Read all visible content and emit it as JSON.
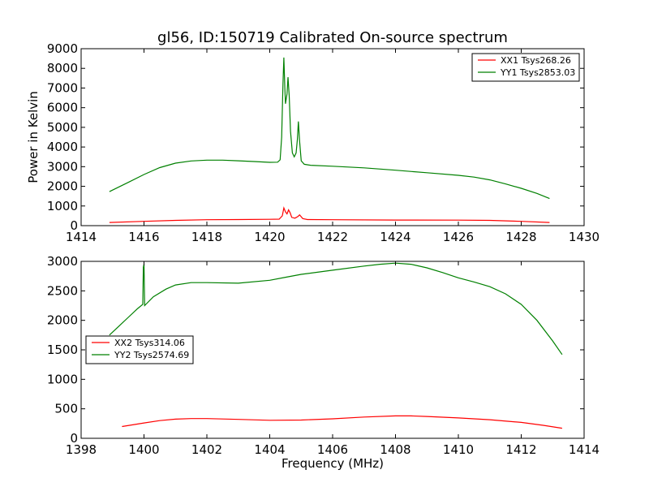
{
  "chart_data": [
    {
      "type": "line",
      "title": "gl56, ID:150719 Calibrated On-source spectrum",
      "xlabel": "",
      "ylabel": "Power in Kelvin",
      "xlim": [
        1414,
        1430
      ],
      "ylim": [
        0,
        9000
      ],
      "x_ticks": [
        "1414",
        "1416",
        "1418",
        "1420",
        "1422",
        "1424",
        "1426",
        "1428",
        "1430"
      ],
      "y_ticks": [
        "0",
        "1000",
        "2000",
        "3000",
        "4000",
        "5000",
        "6000",
        "7000",
        "8000",
        "9000"
      ],
      "legend_position": "top-right",
      "series": [
        {
          "name": "XX1 Tsys268.26",
          "color": "#ff0000",
          "points": [
            [
              1414.9,
              160
            ],
            [
              1416,
              220
            ],
            [
              1417,
              270
            ],
            [
              1418,
              300
            ],
            [
              1419,
              310
            ],
            [
              1420,
              320
            ],
            [
              1420.3,
              330
            ],
            [
              1420.4,
              500
            ],
            [
              1420.45,
              900
            ],
            [
              1420.5,
              700
            ],
            [
              1420.55,
              600
            ],
            [
              1420.6,
              800
            ],
            [
              1420.65,
              650
            ],
            [
              1420.7,
              420
            ],
            [
              1420.8,
              380
            ],
            [
              1420.9,
              470
            ],
            [
              1420.95,
              550
            ],
            [
              1421.05,
              360
            ],
            [
              1421.2,
              310
            ],
            [
              1422,
              300
            ],
            [
              1424,
              285
            ],
            [
              1426,
              280
            ],
            [
              1427,
              270
            ],
            [
              1428,
              220
            ],
            [
              1428.9,
              160
            ]
          ]
        },
        {
          "name": "YY1 Tsys2853.03",
          "color": "#008000",
          "points": [
            [
              1414.9,
              1730
            ],
            [
              1415.5,
              2200
            ],
            [
              1416,
              2600
            ],
            [
              1416.5,
              2950
            ],
            [
              1417,
              3180
            ],
            [
              1417.5,
              3290
            ],
            [
              1418,
              3330
            ],
            [
              1418.5,
              3330
            ],
            [
              1419,
              3300
            ],
            [
              1419.5,
              3260
            ],
            [
              1420,
              3220
            ],
            [
              1420.25,
              3230
            ],
            [
              1420.33,
              3350
            ],
            [
              1420.38,
              4500
            ],
            [
              1420.42,
              7200
            ],
            [
              1420.45,
              8550
            ],
            [
              1420.48,
              7000
            ],
            [
              1420.5,
              6200
            ],
            [
              1420.55,
              6700
            ],
            [
              1420.58,
              7550
            ],
            [
              1420.62,
              6600
            ],
            [
              1420.66,
              4800
            ],
            [
              1420.72,
              3700
            ],
            [
              1420.78,
              3500
            ],
            [
              1420.84,
              3700
            ],
            [
              1420.88,
              4400
            ],
            [
              1420.91,
              5300
            ],
            [
              1420.95,
              4300
            ],
            [
              1421,
              3300
            ],
            [
              1421.1,
              3120
            ],
            [
              1421.3,
              3070
            ],
            [
              1422,
              3020
            ],
            [
              1423,
              2940
            ],
            [
              1424,
              2820
            ],
            [
              1425,
              2690
            ],
            [
              1426,
              2560
            ],
            [
              1426.5,
              2470
            ],
            [
              1427,
              2330
            ],
            [
              1427.5,
              2120
            ],
            [
              1428,
              1900
            ],
            [
              1428.5,
              1640
            ],
            [
              1428.9,
              1380
            ]
          ]
        }
      ]
    },
    {
      "type": "line",
      "title": "",
      "xlabel": "Frequency (MHz)",
      "ylabel": "",
      "xlim": [
        1398,
        1414
      ],
      "ylim": [
        0,
        3000
      ],
      "x_ticks": [
        "1398",
        "1400",
        "1402",
        "1404",
        "1406",
        "1408",
        "1410",
        "1412",
        "1414"
      ],
      "y_ticks": [
        "0",
        "500",
        "1000",
        "1500",
        "2000",
        "2500",
        "3000"
      ],
      "legend_position": "center-left",
      "series": [
        {
          "name": "XX2 Tsys314.06",
          "color": "#ff0000",
          "points": [
            [
              1399.3,
              200
            ],
            [
              1400,
              260
            ],
            [
              1400.5,
              300
            ],
            [
              1401,
              325
            ],
            [
              1401.5,
              335
            ],
            [
              1402,
              335
            ],
            [
              1403,
              320
            ],
            [
              1404,
              305
            ],
            [
              1405,
              310
            ],
            [
              1406,
              330
            ],
            [
              1407,
              360
            ],
            [
              1408,
              380
            ],
            [
              1408.5,
              380
            ],
            [
              1409,
              370
            ],
            [
              1410,
              345
            ],
            [
              1411,
              315
            ],
            [
              1412,
              270
            ],
            [
              1412.7,
              220
            ],
            [
              1413.3,
              170
            ]
          ]
        },
        {
          "name": "YY2 Tsys2574.69",
          "color": "#008000",
          "points": [
            [
              1398.9,
              1750
            ],
            [
              1399.2,
              1900
            ],
            [
              1399.5,
              2050
            ],
            [
              1399.8,
              2200
            ],
            [
              1399.96,
              2270
            ],
            [
              1399.98,
              2900
            ],
            [
              1400.0,
              2950
            ],
            [
              1400.02,
              2250
            ],
            [
              1400.3,
              2400
            ],
            [
              1400.7,
              2530
            ],
            [
              1401,
              2600
            ],
            [
              1401.5,
              2640
            ],
            [
              1402,
              2640
            ],
            [
              1403,
              2630
            ],
            [
              1404,
              2680
            ],
            [
              1404.5,
              2730
            ],
            [
              1405,
              2780
            ],
            [
              1406,
              2850
            ],
            [
              1407,
              2920
            ],
            [
              1407.5,
              2950
            ],
            [
              1408,
              2970
            ],
            [
              1408.5,
              2950
            ],
            [
              1409,
              2890
            ],
            [
              1409.5,
              2810
            ],
            [
              1410,
              2720
            ],
            [
              1410.5,
              2650
            ],
            [
              1411,
              2570
            ],
            [
              1411.5,
              2450
            ],
            [
              1412,
              2270
            ],
            [
              1412.5,
              2000
            ],
            [
              1413,
              1650
            ],
            [
              1413.3,
              1420
            ]
          ]
        }
      ]
    }
  ]
}
